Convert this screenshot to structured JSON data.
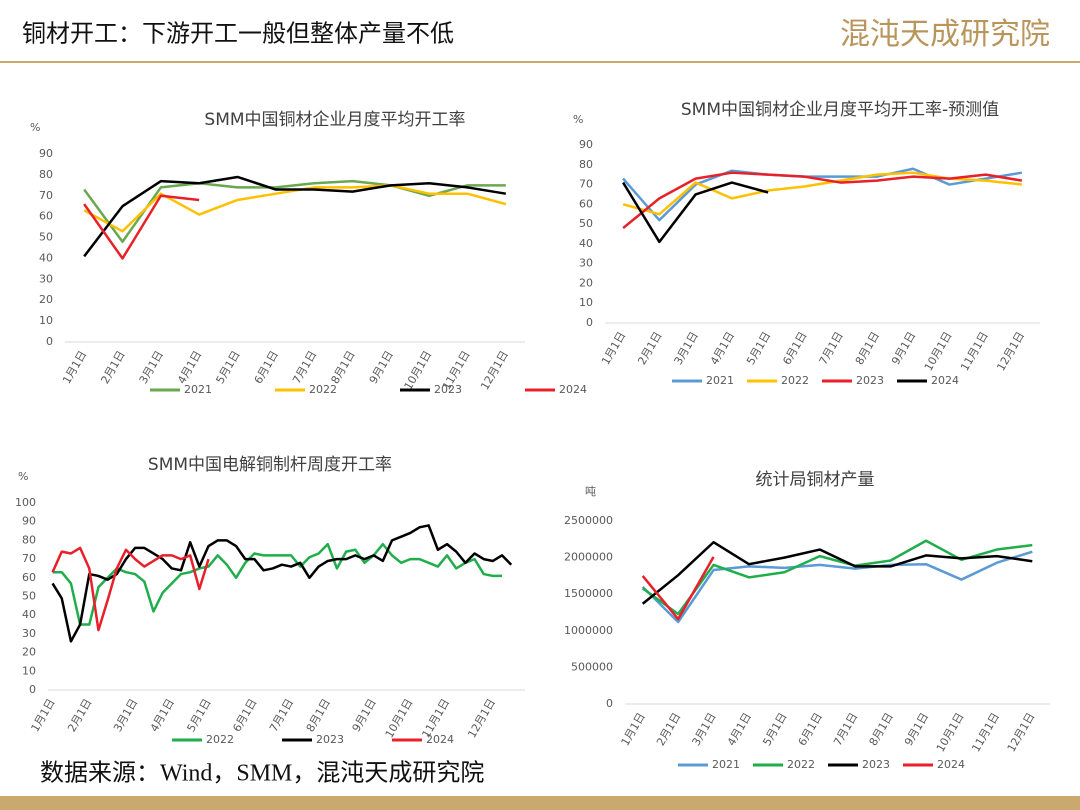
{
  "header": {
    "title": "铜材开工：下游开工一般但整体产量不低",
    "logo": "混沌天成研究院"
  },
  "footer": "数据来源：Wind，SMM，混沌天成研究院",
  "chart_data": [
    {
      "type": "line",
      "title": "SMM中国铜材企业月度平均开工率",
      "y_unit": "%",
      "categories": [
        "1月1日",
        "2月1日",
        "3月1日",
        "4月1日",
        "5月1日",
        "6月1日",
        "7月1日",
        "8月1日",
        "9月1日",
        "10月1日",
        "11月1日",
        "12月1日"
      ],
      "ylim": [
        0,
        90
      ],
      "yticks": [
        0,
        10,
        20,
        30,
        40,
        50,
        60,
        70,
        80,
        90
      ],
      "grid": false,
      "series": [
        {
          "name": "2021",
          "color": "#6aa84f",
          "values": [
            73,
            48,
            74,
            76,
            74,
            74,
            76,
            77,
            75,
            70,
            75,
            75
          ]
        },
        {
          "name": "2022",
          "color": "#ffc000",
          "values": [
            63,
            53,
            71,
            61,
            68,
            71,
            74,
            74,
            75,
            71,
            71,
            66
          ]
        },
        {
          "name": "2023",
          "color": "#000000",
          "values": [
            41,
            65,
            77,
            76,
            79,
            73,
            73,
            72,
            75,
            76,
            74,
            71
          ]
        },
        {
          "name": "2024",
          "color": "#e8202a",
          "values": [
            66,
            40,
            70,
            68,
            null,
            null,
            null,
            null,
            null,
            null,
            null,
            null
          ]
        }
      ]
    },
    {
      "type": "line",
      "title": "SMM中国铜材企业月度平均开工率-预测值",
      "y_unit": "%",
      "categories": [
        "1月1日",
        "2月1日",
        "3月1日",
        "4月1日",
        "5月1日",
        "6月1日",
        "7月1日",
        "8月1日",
        "9月1日",
        "10月1日",
        "11月1日",
        "12月1日"
      ],
      "ylim": [
        0,
        90
      ],
      "yticks": [
        0,
        10,
        20,
        30,
        40,
        50,
        60,
        70,
        80,
        90
      ],
      "grid": false,
      "series": [
        {
          "name": "2021",
          "color": "#5b9bd5",
          "values": [
            73,
            52,
            70,
            77,
            75,
            74,
            74,
            74,
            78,
            70,
            73,
            76
          ]
        },
        {
          "name": "2022",
          "color": "#ffc000",
          "values": [
            60,
            55,
            71,
            63,
            67,
            69,
            72,
            75,
            76,
            73,
            72,
            70
          ]
        },
        {
          "name": "2023",
          "color": "#e8202a",
          "values": [
            48,
            63,
            73,
            76,
            75,
            74,
            71,
            72,
            74,
            73,
            75,
            72
          ]
        },
        {
          "name": "2024",
          "color": "#000000",
          "values": [
            71,
            41,
            65,
            71,
            66,
            null,
            null,
            null,
            null,
            null,
            null,
            null
          ]
        }
      ]
    },
    {
      "type": "line",
      "title": "SMM中国电解铜制杆周度开工率",
      "y_unit": "%",
      "categories": [
        "1月1日",
        null,
        null,
        null,
        "2月1日",
        null,
        null,
        null,
        null,
        "3月1日",
        null,
        null,
        null,
        "4月1日",
        null,
        null,
        null,
        "5月1日",
        null,
        null,
        null,
        null,
        "6月1日",
        null,
        null,
        null,
        "7月1日",
        null,
        null,
        null,
        "8月1日",
        null,
        null,
        null,
        null,
        "9月1日",
        null,
        null,
        null,
        "10月1日",
        null,
        null,
        null,
        "11月1日",
        null,
        null,
        null,
        null,
        "12月1日",
        null,
        null,
        null
      ],
      "ylim": [
        0,
        100
      ],
      "yticks": [
        0,
        10,
        20,
        30,
        40,
        50,
        60,
        70,
        80,
        90,
        100
      ],
      "grid": false,
      "series": [
        {
          "name": "2022",
          "color": "#1fae4b",
          "values": [
            63,
            63,
            57,
            35,
            35,
            55,
            60,
            65,
            63,
            62,
            58,
            42,
            52,
            57,
            62,
            63,
            65,
            66,
            72,
            67,
            60,
            68,
            73,
            72,
            72,
            72,
            72,
            66,
            71,
            73,
            78,
            65,
            74,
            75,
            68,
            72,
            78,
            72,
            68,
            70,
            70,
            68,
            66,
            72,
            65,
            68,
            70,
            62,
            61,
            61,
            null,
            null
          ]
        },
        {
          "name": "2023",
          "color": "#000000",
          "values": [
            57,
            49,
            26,
            35,
            62,
            61,
            59,
            62,
            70,
            76,
            76,
            73,
            70,
            65,
            64,
            79,
            66,
            77,
            80,
            80,
            77,
            70,
            70,
            64,
            65,
            67,
            66,
            68,
            60,
            66,
            69,
            70,
            70,
            72,
            70,
            72,
            69,
            80,
            82,
            84,
            87,
            88,
            75,
            78,
            74,
            68,
            73,
            70,
            69,
            72,
            67,
            null
          ]
        },
        {
          "name": "2024",
          "color": "#e8202a",
          "values": [
            63,
            74,
            73,
            76,
            65,
            32,
            48,
            65,
            75,
            70,
            66,
            69,
            72,
            72,
            70,
            72,
            54,
            70,
            null,
            null,
            null,
            null,
            null,
            null,
            null,
            null,
            null,
            null,
            null,
            null,
            null,
            null,
            null,
            null,
            null,
            null,
            null,
            null,
            null,
            null,
            null,
            null,
            null,
            null,
            null,
            null,
            null,
            null,
            null,
            null,
            null,
            null
          ]
        }
      ]
    },
    {
      "type": "line",
      "title": "统计局铜材产量",
      "y_unit": "吨",
      "categories": [
        "1月1日",
        "2月1日",
        "3月1日",
        "4月1日",
        "5月1日",
        "6月1日",
        "7月1日",
        "8月1日",
        "9月1日",
        "10月1日",
        "11月1日",
        "12月1日"
      ],
      "ylim": [
        0,
        2500000
      ],
      "yticks": [
        0,
        500000,
        1000000,
        1500000,
        2000000,
        2500000
      ],
      "grid": false,
      "series": [
        {
          "name": "2021",
          "color": "#5b9bd5",
          "values": [
            1600000,
            1120000,
            1830000,
            1880000,
            1860000,
            1900000,
            1850000,
            1900000,
            1910000,
            1700000,
            1930000,
            2080000
          ]
        },
        {
          "name": "2022",
          "color": "#1fae4b",
          "values": [
            1580000,
            1230000,
            1900000,
            1730000,
            1800000,
            2020000,
            1890000,
            1960000,
            2230000,
            1970000,
            2110000,
            2170000
          ]
        },
        {
          "name": "2023",
          "color": "#000000",
          "values": [
            1370000,
            1760000,
            2210000,
            1910000,
            2000000,
            2110000,
            1880000,
            1880000,
            2030000,
            1990000,
            2020000,
            1950000
          ]
        },
        {
          "name": "2024",
          "color": "#e8202a",
          "values": [
            1750000,
            1160000,
            2010000,
            null,
            null,
            null,
            null,
            null,
            null,
            null,
            null,
            null
          ]
        }
      ]
    }
  ]
}
